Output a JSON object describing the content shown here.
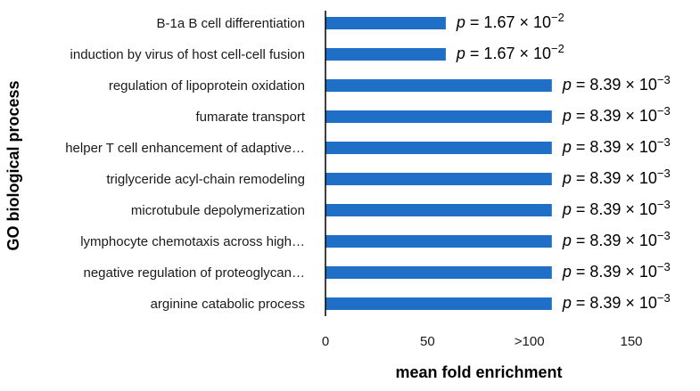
{
  "chart_data": {
    "type": "bar",
    "orientation": "horizontal",
    "xlabel": "mean fold enrichment",
    "ylabel": "GO biological process",
    "xlim": [
      0,
      150
    ],
    "xticks": [
      {
        "value": 0,
        "label": "0"
      },
      {
        "value": 50,
        "label": "50"
      },
      {
        "value": 100,
        "label": ">100"
      },
      {
        "value": 150,
        "label": "150"
      }
    ],
    "grid": false,
    "bar_color": "#1f6fc6",
    "categories": [
      "B-1a B cell differentiation",
      "induction by virus of host cell-cell fusion",
      "regulation of lipoprotein oxidation",
      "fumarate transport",
      "helper T cell enhancement of adaptive…",
      "triglyceride acyl-chain remodeling",
      "microtubule depolymerization",
      "lymphocyte chemotaxis across high…",
      "negative regulation of proteoglycan…",
      "arginine catabolic process"
    ],
    "values": [
      59,
      59,
      111,
      111,
      111,
      111,
      111,
      111,
      111,
      111
    ],
    "annotations": [
      {
        "mantissa": "1.67",
        "exponent": "−2"
      },
      {
        "mantissa": "1.67",
        "exponent": "−2"
      },
      {
        "mantissa": "8.39",
        "exponent": "−3"
      },
      {
        "mantissa": "8.39",
        "exponent": "−3"
      },
      {
        "mantissa": "8.39",
        "exponent": "−3"
      },
      {
        "mantissa": "8.39",
        "exponent": "−3"
      },
      {
        "mantissa": "8.39",
        "exponent": "−3"
      },
      {
        "mantissa": "8.39",
        "exponent": "−3"
      },
      {
        "mantissa": "8.39",
        "exponent": "−3"
      },
      {
        "mantissa": "8.39",
        "exponent": "−3"
      }
    ],
    "annotation_prefix": "p",
    "annotation_eq": " = ",
    "annotation_times": " × 10"
  }
}
